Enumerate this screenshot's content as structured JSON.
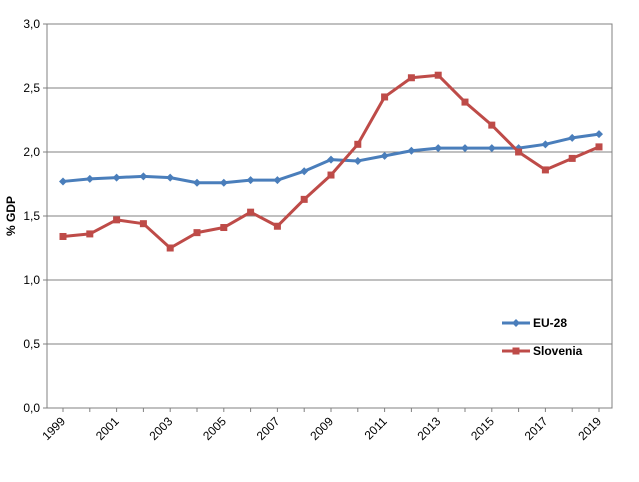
{
  "chart_data": {
    "type": "line",
    "ylabel": "% GDP",
    "ylim": [
      0,
      3.0
    ],
    "y_ticks": [
      "0,0",
      "0,5",
      "1,0",
      "1,5",
      "2,0",
      "2,5",
      "3,0"
    ],
    "x_tick_labels": [
      "1999",
      "2001",
      "2003",
      "2005",
      "2007",
      "2009",
      "2011",
      "2013",
      "2015",
      "2017",
      "2019"
    ],
    "categories": [
      "1999",
      "2000",
      "2001",
      "2002",
      "2003",
      "2004",
      "2005",
      "2006",
      "2007",
      "2008",
      "2009",
      "2010",
      "2011",
      "2012",
      "2013",
      "2014",
      "2015",
      "2016",
      "2017",
      "2018",
      "2019"
    ],
    "grid": "horizontal",
    "legend_position": "right",
    "series": [
      {
        "name": "EU-28",
        "color": "#4a7ebb",
        "marker": "diamond",
        "values": [
          1.77,
          1.79,
          1.8,
          1.81,
          1.8,
          1.76,
          1.76,
          1.78,
          1.78,
          1.85,
          1.94,
          1.93,
          1.97,
          2.01,
          2.03,
          2.03,
          2.03,
          2.03,
          2.06,
          2.11,
          2.14
        ]
      },
      {
        "name": "Slovenia",
        "color": "#be4b48",
        "marker": "square",
        "values": [
          1.34,
          1.36,
          1.47,
          1.44,
          1.25,
          1.37,
          1.41,
          1.53,
          1.42,
          1.63,
          1.82,
          2.06,
          2.43,
          2.58,
          2.6,
          2.39,
          2.21,
          2.0,
          1.86,
          1.95,
          2.04
        ]
      }
    ]
  }
}
